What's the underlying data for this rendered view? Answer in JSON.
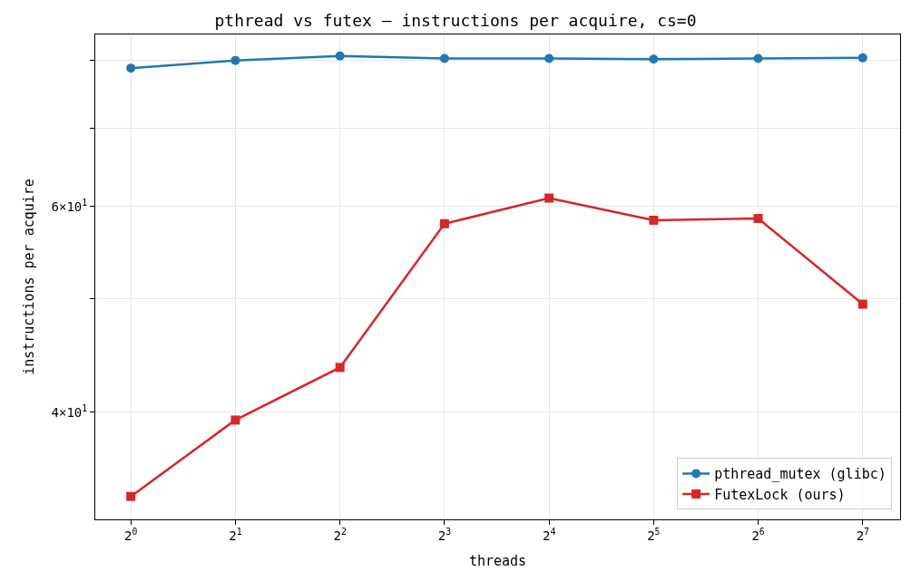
{
  "chart_data": {
    "type": "line",
    "title": "pthread vs futex — instructions per acquire, cs=0",
    "xlabel": "threads",
    "ylabel": "instructions per acquire",
    "x": [
      1,
      2,
      4,
      8,
      16,
      32,
      64,
      128
    ],
    "series": [
      {
        "name": "pthread_mutex (glibc)",
        "color": "#1f77b4",
        "marker": "circle",
        "values": [
          78.8,
          80.0,
          80.7,
          80.3,
          80.3,
          80.2,
          80.3,
          80.4
        ]
      },
      {
        "name": "FutexLock (ours)",
        "color": "#d62728",
        "marker": "square",
        "values": [
          33.9,
          39.4,
          43.7,
          58.0,
          61.0,
          58.4,
          58.6,
          49.5
        ]
      }
    ],
    "log": "xy",
    "xlim": [
      0.79,
      164
    ],
    "ylim": [
      32.4,
      84.2
    ],
    "xticks": [
      {
        "value": 1,
        "label": "2$^{0}$"
      },
      {
        "value": 2,
        "label": "2$^{1}$"
      },
      {
        "value": 4,
        "label": "2$^{2}$"
      },
      {
        "value": 8,
        "label": "2$^{3}$"
      },
      {
        "value": 16,
        "label": "2$^{4}$"
      },
      {
        "value": 32,
        "label": "2$^{5}$"
      },
      {
        "value": 64,
        "label": "2$^{6}$"
      },
      {
        "value": 128,
        "label": "2$^{7}$"
      }
    ],
    "yticks": [
      {
        "value": 40,
        "label": "4×10$^{1}$"
      },
      {
        "value": 50,
        "label": null
      },
      {
        "value": 60,
        "label": "6×10$^{1}$"
      },
      {
        "value": 70,
        "label": null
      },
      {
        "value": 80,
        "label": null
      }
    ],
    "grid": true,
    "legend": "bottom right",
    "line_style": "solid"
  }
}
